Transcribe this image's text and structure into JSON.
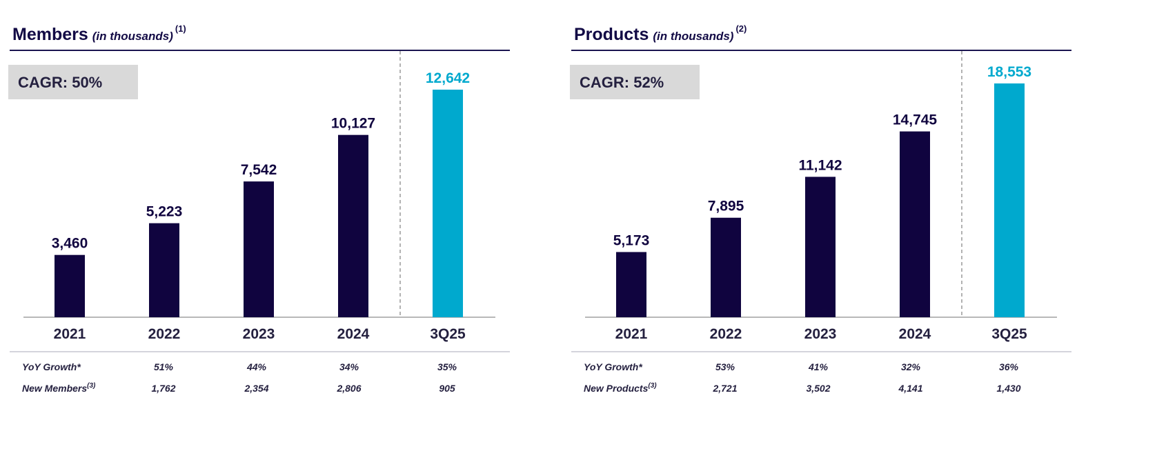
{
  "colors": {
    "primary": "#10043f",
    "highlight": "#00a9ce",
    "cagr_bg": "#d9d9d9"
  },
  "chart_data": [
    {
      "type": "bar",
      "title": "Members",
      "subtitle": "(in thousands)",
      "footnote": "(1)",
      "cagr": "CAGR: 50%",
      "categories": [
        "2021",
        "2022",
        "2023",
        "2024",
        "3Q25"
      ],
      "values": [
        3460,
        5223,
        7542,
        10127,
        12642
      ],
      "value_labels": [
        "3,460",
        "5,223",
        "7,542",
        "10,127",
        "12,642"
      ],
      "highlight_index": 4,
      "ylim": [
        0,
        14826
      ],
      "table": {
        "rows": [
          {
            "label": "YoY Growth*",
            "sup": "",
            "values": [
              "",
              "51%",
              "44%",
              "34%",
              "35%"
            ]
          },
          {
            "label": "New Members",
            "sup": "(3)",
            "values": [
              "",
              "1,762",
              "2,354",
              "2,806",
              "905"
            ]
          }
        ]
      }
    },
    {
      "type": "bar",
      "title": "Products",
      "subtitle": "(in thousands)",
      "footnote": "(2)",
      "cagr": "CAGR: 52%",
      "categories": [
        "2021",
        "2022",
        "2023",
        "2024",
        "3Q25"
      ],
      "values": [
        5173,
        7895,
        11142,
        14745,
        18553
      ],
      "value_labels": [
        "5,173",
        "7,895",
        "11,142",
        "14,745",
        "18,553"
      ],
      "highlight_index": 4,
      "ylim": [
        0,
        21180
      ],
      "table": {
        "rows": [
          {
            "label": "YoY Growth*",
            "sup": "",
            "values": [
              "",
              "53%",
              "41%",
              "32%",
              "36%"
            ]
          },
          {
            "label": "New Products",
            "sup": "(3)",
            "values": [
              "",
              "2,721",
              "3,502",
              "4,141",
              "1,430"
            ]
          }
        ]
      }
    }
  ]
}
